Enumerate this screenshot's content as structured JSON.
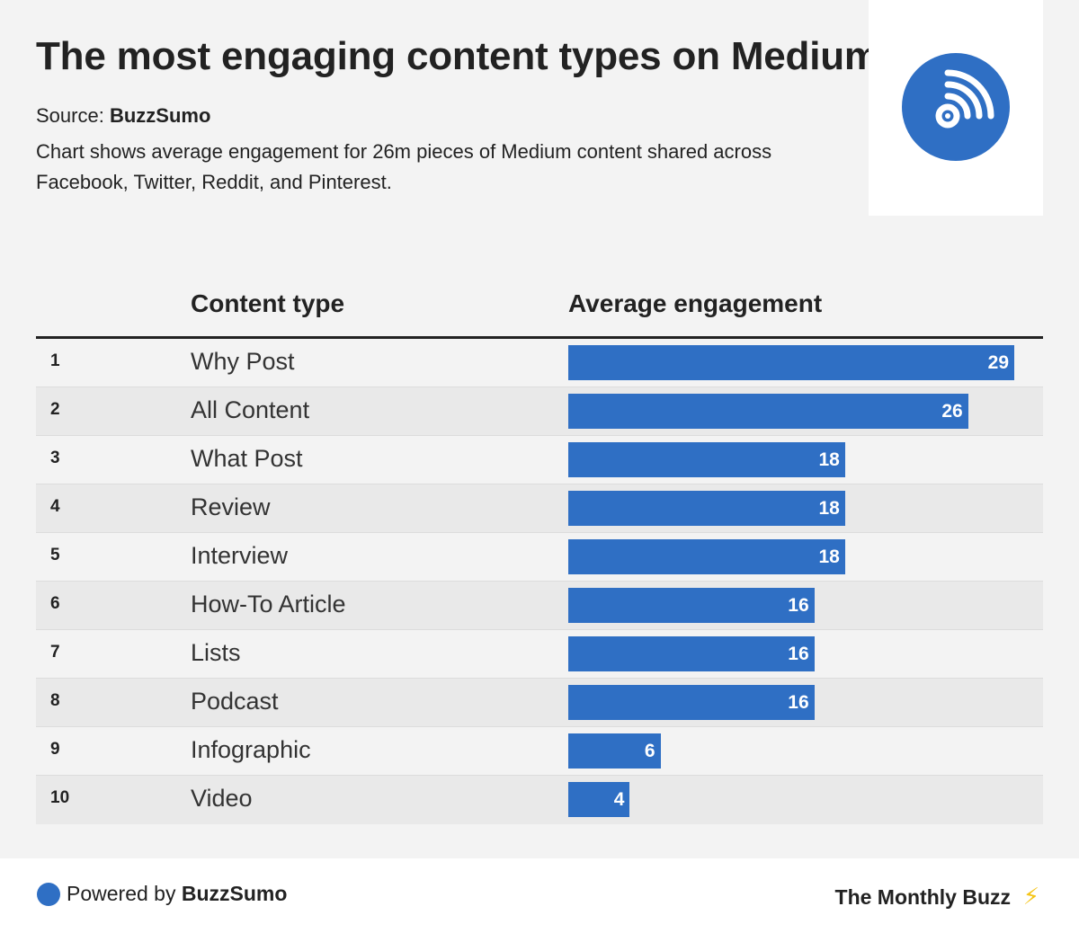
{
  "header": {
    "title": "The most engaging content types on Medium",
    "source_label": "Source:",
    "source_name": "BuzzSumo",
    "subtitle": "Chart shows average engagement for 26m pieces of Medium content shared across Facebook, Twitter, Reddit, and Pinterest.",
    "logo_icon": "rss-feed-icon"
  },
  "columns": {
    "content_type": "Content type",
    "average_engagement": "Average engagement"
  },
  "chart_data": {
    "type": "bar",
    "orientation": "horizontal",
    "categories": [
      "Why Post",
      "All Content",
      "What Post",
      "Review",
      "Interview",
      "How-To Article",
      "Lists",
      "Podcast",
      "Infographic",
      "Video"
    ],
    "ranks": [
      "1",
      "2",
      "3",
      "4",
      "5",
      "6",
      "7",
      "8",
      "9",
      "10"
    ],
    "values": [
      29,
      26,
      18,
      18,
      18,
      16,
      16,
      16,
      6,
      4
    ],
    "xlim": [
      0,
      31
    ],
    "bar_color": "#2f6fc4"
  },
  "footer": {
    "powered_prefix": "Powered by",
    "powered_brand": "BuzzSumo",
    "newsletter": "The Monthly Buzz",
    "bolt_icon": "lightning-bolt-icon"
  },
  "colors": {
    "accent": "#2f6fc4",
    "background": "#f3f3f3",
    "row_alt": "#e9e9e9"
  }
}
